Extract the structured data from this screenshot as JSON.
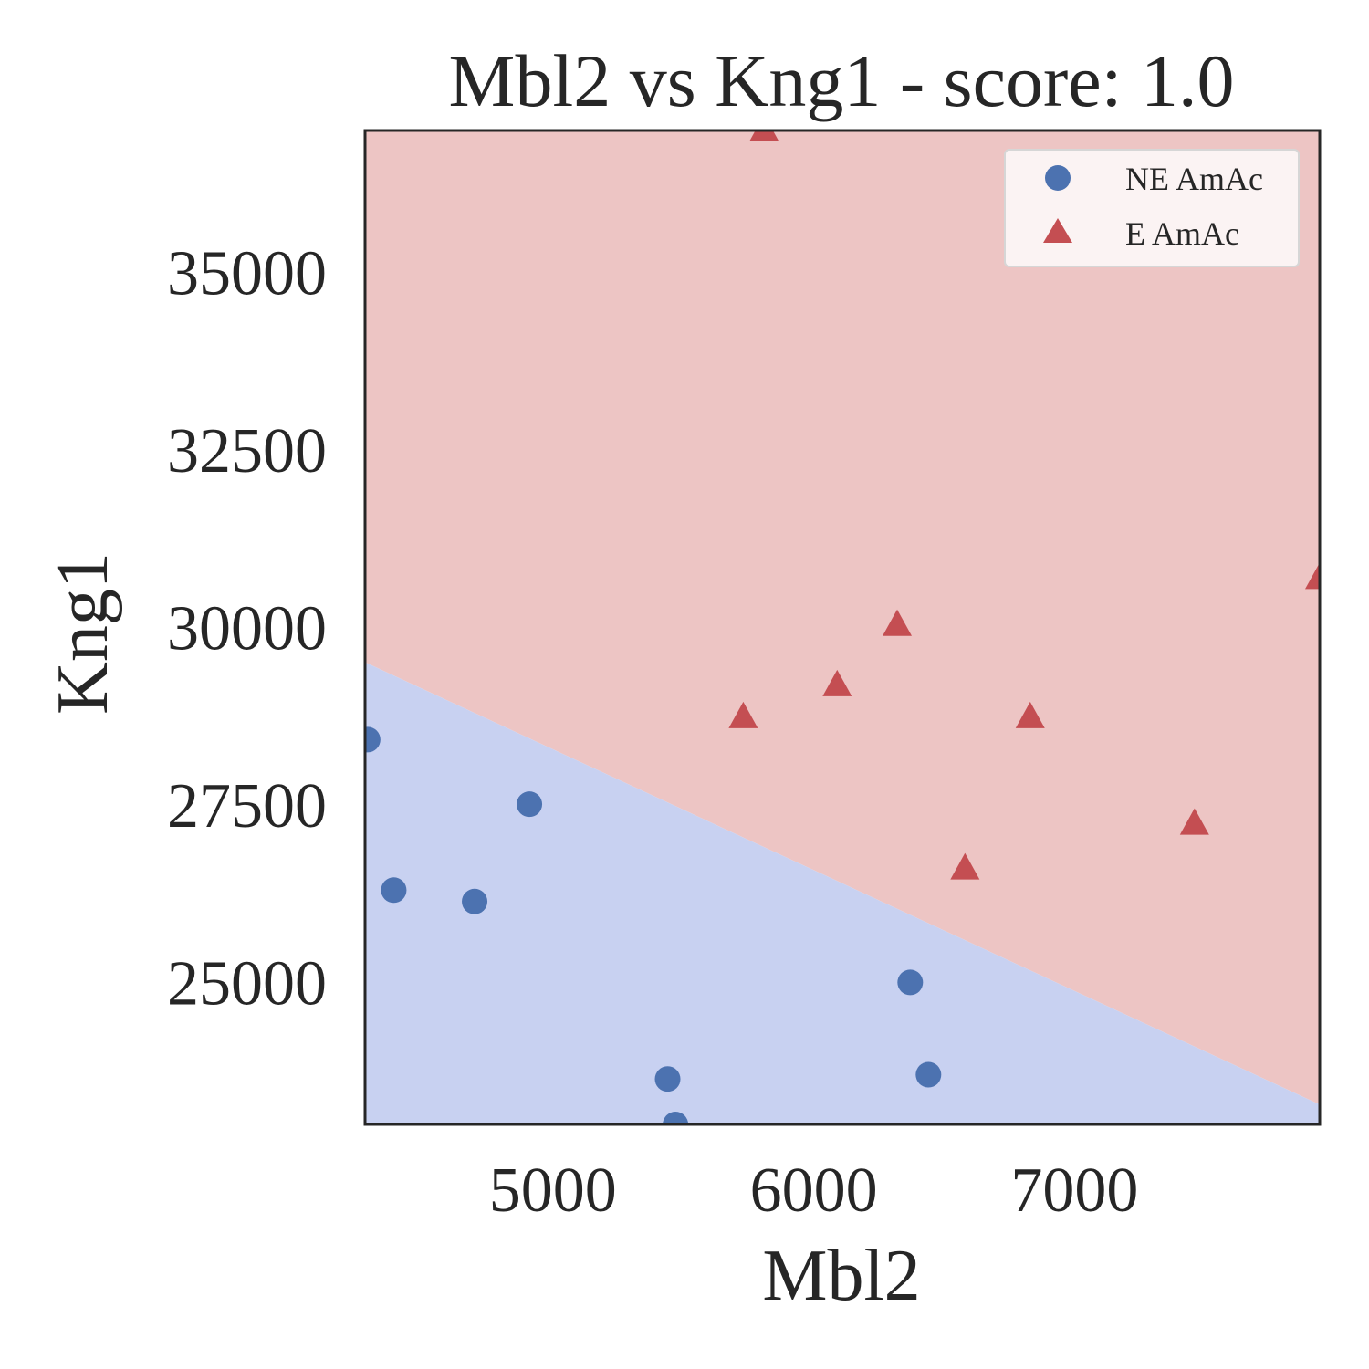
{
  "chart_data": {
    "type": "scatter",
    "title": "Mbl2 vs Kng1 - score: 1.0",
    "xlabel": "Mbl2",
    "ylabel": "Kng1",
    "xlim": [
      4280,
      7940
    ],
    "ylim": [
      23000,
      37000
    ],
    "xticks": [
      5000,
      6000,
      7000
    ],
    "yticks": [
      25000,
      27500,
      30000,
      32500,
      35000
    ],
    "grid": false,
    "legend_position": "top-right",
    "regions": {
      "boundary": {
        "x": [
          4280,
          7940
        ],
        "y": [
          29510,
          23280
        ]
      },
      "below": {
        "label": "NE AmAc",
        "color": "#c8d1f1"
      },
      "above": {
        "label": "E AmAc",
        "color": "#edc5c4"
      }
    },
    "series": [
      {
        "name": "NE AmAc",
        "marker": "circle",
        "color": "#4c72b0",
        "points": [
          [
            4290,
            28420
          ],
          [
            4390,
            26300
          ],
          [
            4700,
            26140
          ],
          [
            4910,
            27510
          ],
          [
            5440,
            23640
          ],
          [
            5470,
            23000
          ],
          [
            6370,
            25000
          ],
          [
            6440,
            23700
          ]
        ]
      },
      {
        "name": "E AmAc",
        "marker": "triangle",
        "color": "#c44e52",
        "points": [
          [
            5810,
            37000
          ],
          [
            5730,
            28730
          ],
          [
            6090,
            29180
          ],
          [
            6320,
            30030
          ],
          [
            6580,
            26600
          ],
          [
            6830,
            28730
          ],
          [
            7460,
            27230
          ],
          [
            7940,
            30690
          ]
        ]
      }
    ]
  }
}
